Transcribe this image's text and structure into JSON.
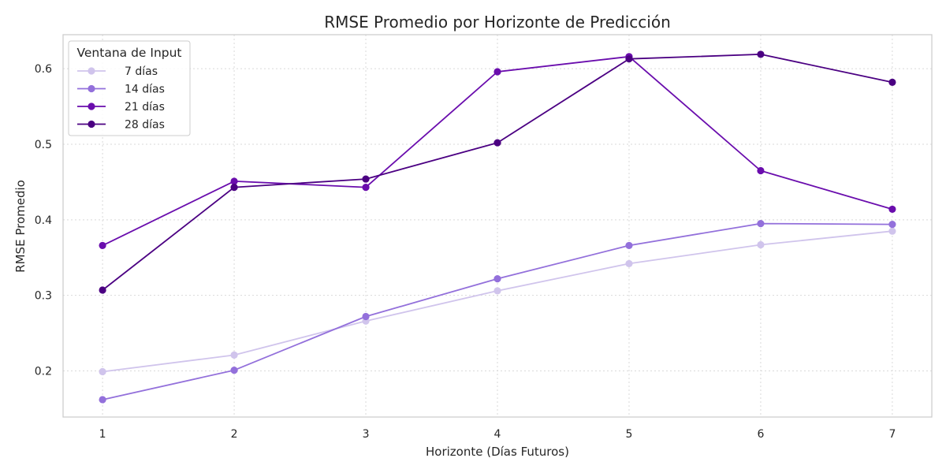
{
  "chart_data": {
    "type": "line",
    "title": "RMSE Promedio por Horizonte de Predicción",
    "xlabel": "Horizonte (Días Futuros)",
    "ylabel": "RMSE Promedio",
    "x": [
      1,
      2,
      3,
      4,
      5,
      6,
      7
    ],
    "xticks": [
      "1",
      "2",
      "3",
      "4",
      "5",
      "6",
      "7"
    ],
    "yticks": [
      "0.2",
      "0.3",
      "0.4",
      "0.5",
      "0.6"
    ],
    "ytick_values": [
      0.2,
      0.3,
      0.4,
      0.5,
      0.6
    ],
    "xlim": [
      0.7,
      7.3
    ],
    "ylim": [
      0.139,
      0.645
    ],
    "grid": true,
    "legend": {
      "title": "Ventana de Input",
      "placement": "top-left"
    },
    "series": [
      {
        "name": "7 días",
        "color": "#d0c4ec",
        "values": [
          0.199,
          0.221,
          0.266,
          0.306,
          0.342,
          0.367,
          0.385
        ]
      },
      {
        "name": "14 días",
        "color": "#9370db",
        "values": [
          0.162,
          0.201,
          0.272,
          0.322,
          0.366,
          0.395,
          0.394
        ]
      },
      {
        "name": "21 días",
        "color": "#6a0dad",
        "values": [
          0.366,
          0.451,
          0.443,
          0.596,
          0.616,
          0.465,
          0.414
        ]
      },
      {
        "name": "28 días",
        "color": "#4b0082",
        "values": [
          0.307,
          0.443,
          0.454,
          0.502,
          0.613,
          0.619,
          0.582
        ]
      }
    ]
  }
}
